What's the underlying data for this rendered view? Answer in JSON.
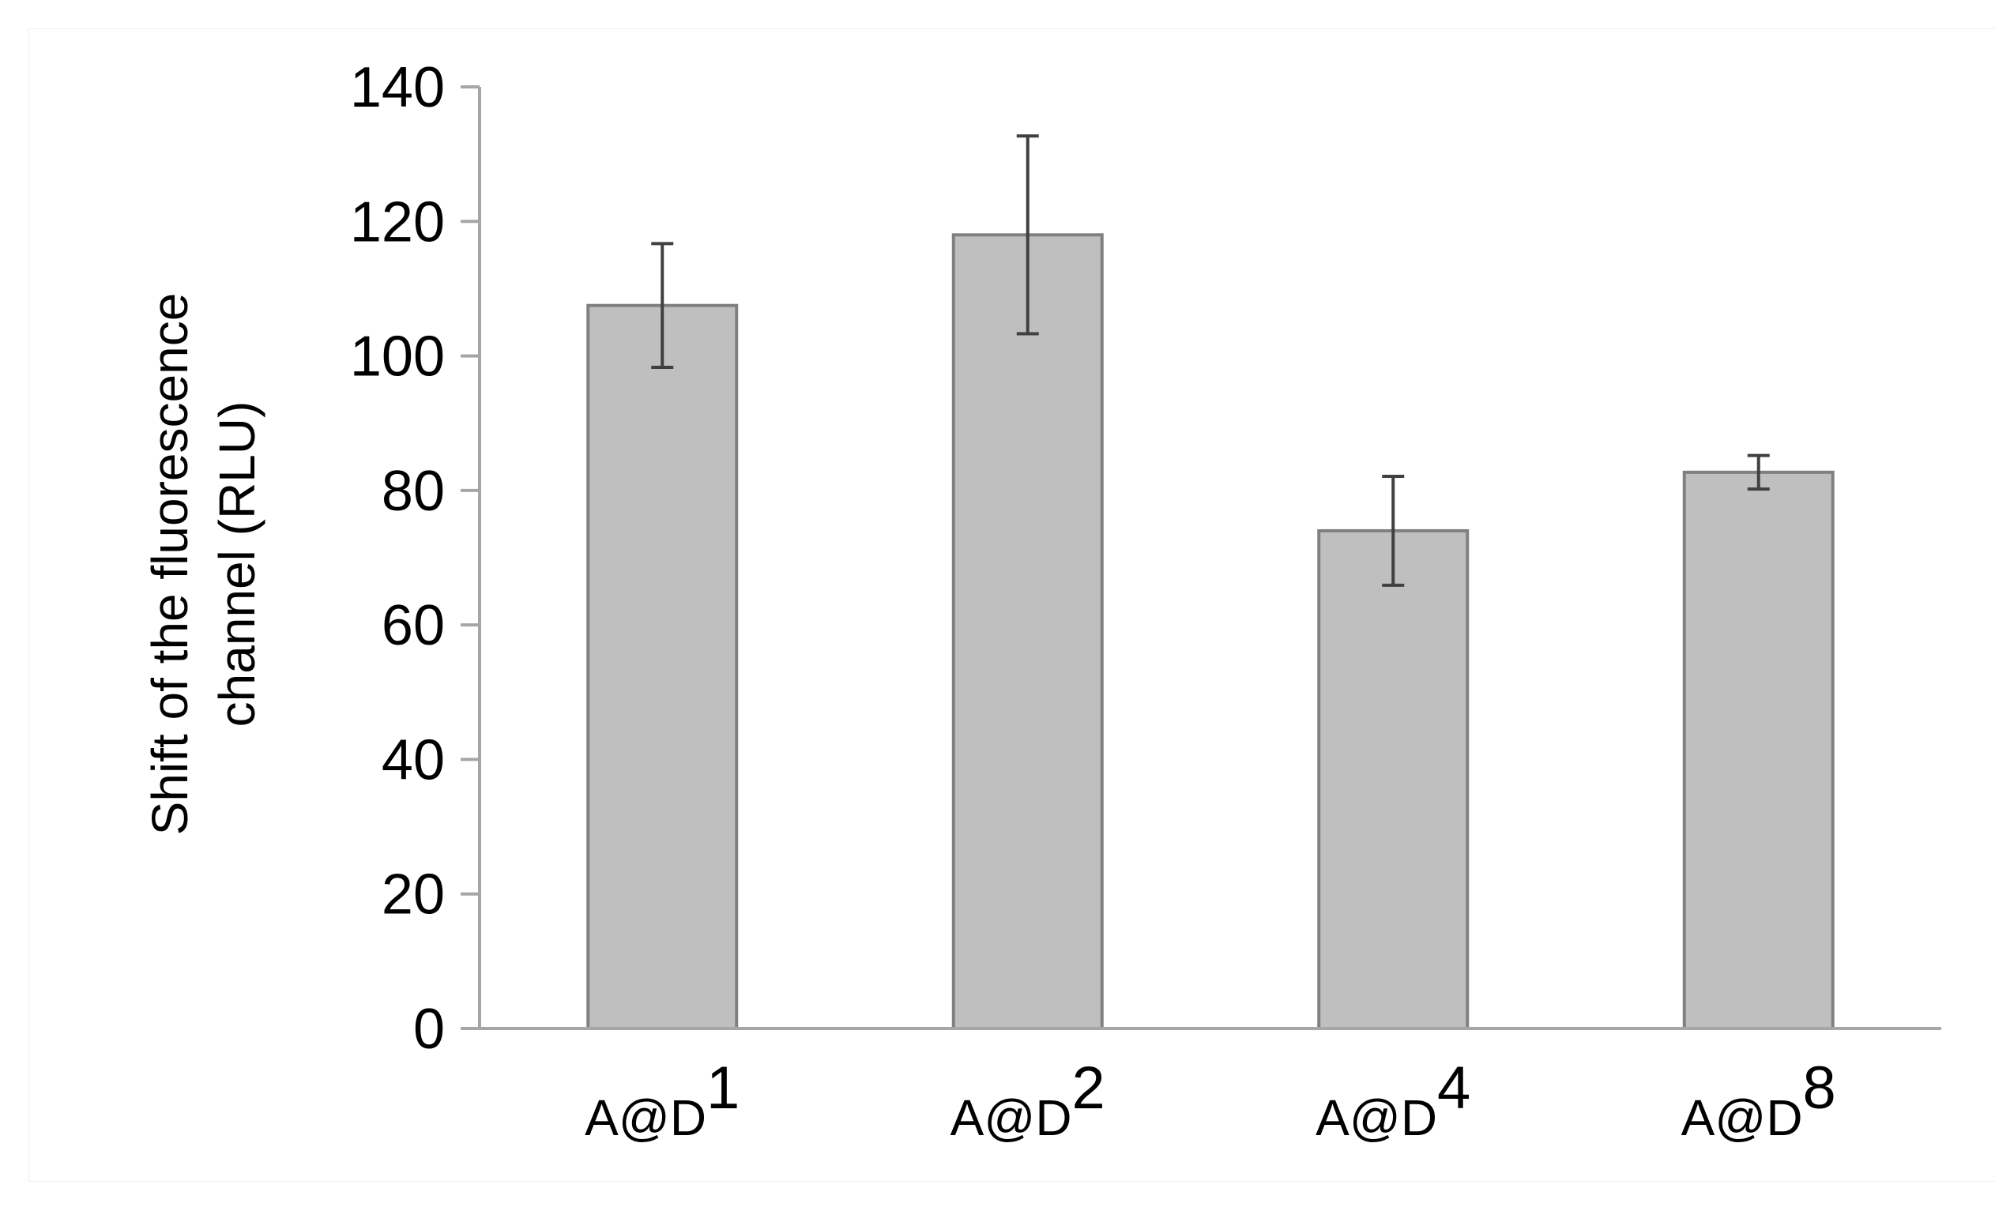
{
  "chart_data": {
    "type": "bar",
    "categories": [
      {
        "base": "A@D",
        "sup": "1"
      },
      {
        "base": "A@D",
        "sup": "2"
      },
      {
        "base": "A@D",
        "sup": "4"
      },
      {
        "base": "A@D",
        "sup": "8"
      }
    ],
    "values": [
      107.5,
      118,
      74,
      82.7
    ],
    "errors": [
      9.2,
      14.7,
      8.1,
      2.5
    ],
    "ylabel_line1": "Shift of the fluorescence",
    "ylabel_line2": "channel (RLU)",
    "ylim": [
      0,
      140
    ],
    "yticks": [
      0,
      20,
      40,
      60,
      80,
      100,
      120,
      140
    ],
    "grid": false,
    "legend": "none",
    "colors": {
      "bar_fill": "#bfbfbf",
      "bar_stroke": "#808080",
      "axis": "#a6a6a6",
      "error_bar": "#404040"
    }
  }
}
